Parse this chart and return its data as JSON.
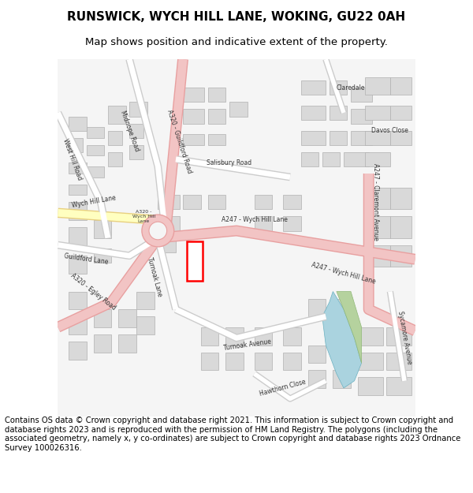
{
  "title_line1": "RUNSWICK, WYCH HILL LANE, WOKING, GU22 0AH",
  "title_line2": "Map shows position and indicative extent of the property.",
  "footer_text": "Contains OS data © Crown copyright and database right 2021. This information is subject to Crown copyright and database rights 2023 and is reproduced with the permission of HM Land Registry. The polygons (including the associated geometry, namely x, y co-ordinates) are subject to Crown copyright and database rights 2023 Ordnance Survey 100026316.",
  "fig_width": 6.0,
  "fig_height": 6.25,
  "map_bg": "#f5f5f5",
  "road_major_color": "#f2c4c4",
  "road_major_edge": "#e8a0a0",
  "road_minor_color": "#ffffff",
  "road_minor_edge": "#cccccc",
  "building_fill": "#d9d9d9",
  "building_edge": "#b0b0b0",
  "plot_edge": "#ff0000",
  "plot_lw": 1.8,
  "water_fill": "#aad3df",
  "green_fill": "#b5d29e",
  "yellow_road_fill": "#ffffc0",
  "yellow_road_edge": "#e8d080",
  "label_color": "#333333",
  "label_fontsize": 5.5,
  "label_small_fontsize": 4.5
}
